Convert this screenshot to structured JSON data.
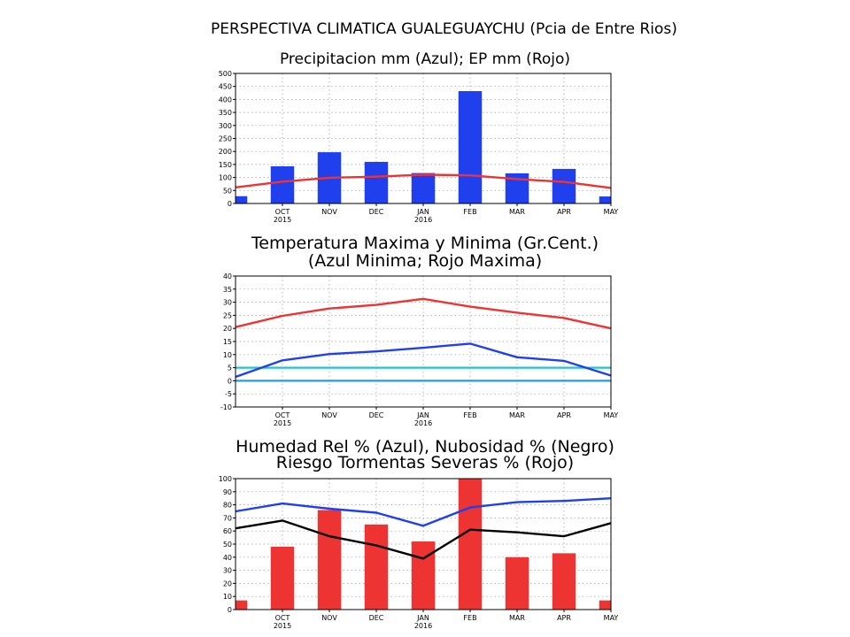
{
  "figure_title": "PERSPECTIVA CLIMATICA GUALEGUAYCHU (Pcia de Entre Rios)",
  "colors": {
    "blue": "#2040ee",
    "red": "#ee3333",
    "black": "#000000",
    "cyan": "#22c4d4",
    "lightblue": "#1f9ef0"
  },
  "chart_data": [
    {
      "id": "precip",
      "type": "bar",
      "title": "Precipitacion mm (Azul); EP mm (Rojo)",
      "title2": "",
      "x_ticks": [
        "OCT",
        "NOV",
        "DEC",
        "JAN",
        "FEB",
        "MAR",
        "APR",
        "MAY"
      ],
      "x_years": [
        "2015",
        "",
        "",
        "2016",
        "",
        "",
        "",
        ""
      ],
      "ylim": [
        0,
        500
      ],
      "yticks": [
        0,
        50,
        100,
        150,
        200,
        250,
        300,
        350,
        400,
        450,
        500
      ],
      "grid": true,
      "bar_series": {
        "color": "blue",
        "values": [
          28,
          143,
          197,
          160,
          117,
          432,
          116,
          133,
          27
        ]
      },
      "line_series": [
        {
          "color": "red",
          "values": [
            62,
            84,
            99,
            103,
            111,
            108,
            94,
            83,
            60
          ]
        }
      ],
      "hlines": []
    },
    {
      "id": "temp",
      "type": "line",
      "title": "Temperatura Maxima y Minima (Gr.Cent.)",
      "title2": "(Azul Minima; Rojo Maxima)",
      "x_ticks": [
        "OCT",
        "NOV",
        "DEC",
        "JAN",
        "FEB",
        "MAR",
        "APR",
        "MAY"
      ],
      "x_years": [
        "2015",
        "",
        "",
        "2016",
        "",
        "",
        "",
        ""
      ],
      "ylim": [
        -10,
        40
      ],
      "yticks": [
        -10,
        -5,
        0,
        5,
        10,
        15,
        20,
        25,
        30,
        35,
        40
      ],
      "grid": true,
      "bar_series": null,
      "line_series": [
        {
          "color": "red",
          "values": [
            20.5,
            24.8,
            27.6,
            29.0,
            31.3,
            28.3,
            26.0,
            24.0,
            20.0
          ]
        },
        {
          "color": "blue",
          "values": [
            1.5,
            7.8,
            10.2,
            11.2,
            12.6,
            14.2,
            9.0,
            7.6,
            2.0
          ]
        }
      ],
      "hlines": [
        {
          "color": "cyan",
          "value": 5
        },
        {
          "color": "lightblue",
          "value": 0
        }
      ]
    },
    {
      "id": "humidity",
      "type": "bar",
      "title": "Humedad Rel % (Azul), Nubosidad % (Negro)",
      "title2": "Riesgo Tormentas Severas % (Rojo)",
      "x_ticks": [
        "OCT",
        "NOV",
        "DEC",
        "JAN",
        "FEB",
        "MAR",
        "APR",
        "MAY"
      ],
      "x_years": [
        "2015",
        "",
        "",
        "2016",
        "",
        "",
        "",
        ""
      ],
      "ylim": [
        0,
        100
      ],
      "yticks": [
        0,
        10,
        20,
        30,
        40,
        50,
        60,
        70,
        80,
        90,
        100
      ],
      "grid": true,
      "bar_series": {
        "color": "red",
        "values": [
          7,
          48,
          76,
          65,
          52,
          100,
          40,
          43,
          7
        ]
      },
      "line_series": [
        {
          "color": "blue",
          "values": [
            75,
            81,
            77,
            74,
            64,
            78,
            82,
            83,
            85
          ]
        },
        {
          "color": "black",
          "values": [
            62,
            68,
            56,
            49,
            39,
            61,
            59,
            56,
            66
          ]
        }
      ],
      "hlines": []
    }
  ]
}
